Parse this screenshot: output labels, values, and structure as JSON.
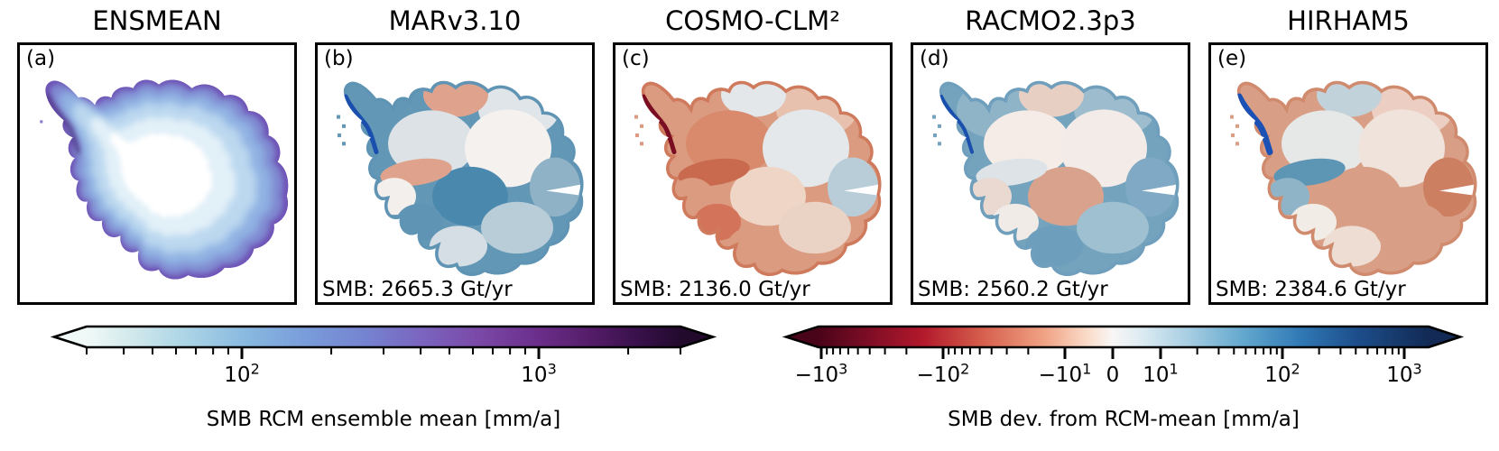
{
  "panels": [
    {
      "id": "(a)",
      "title": "ENSMEAN",
      "smb": ""
    },
    {
      "id": "(b)",
      "title": "MARv3.10",
      "smb": "SMB: 2665.3 Gt/yr"
    },
    {
      "id": "(c)",
      "title": "COSMO-CLM²",
      "smb": "SMB: 2136.0 Gt/yr"
    },
    {
      "id": "(d)",
      "title": "RACMO2.3p3",
      "smb": "SMB: 2560.2 Gt/yr"
    },
    {
      "id": "(e)",
      "title": "HIRHAM5",
      "smb": "SMB: 2384.6 Gt/yr"
    }
  ],
  "colorbars": {
    "left": {
      "label": "SMB RCM ensemble mean [mm/a]",
      "scale": "log",
      "majors": [
        {
          "v": 100,
          "base": "10",
          "exp": "2"
        },
        {
          "v": 1000,
          "base": "10",
          "exp": "3"
        }
      ],
      "minors": [
        30,
        40,
        50,
        60,
        70,
        80,
        90,
        200,
        300,
        400,
        500,
        600,
        700,
        800,
        900,
        2000,
        3000
      ],
      "gradient": [
        [
          0,
          "#f0f9f7"
        ],
        [
          0.07,
          "#d4eaec"
        ],
        [
          0.16,
          "#aed6e6"
        ],
        [
          0.27,
          "#88b9e0"
        ],
        [
          0.37,
          "#799cda"
        ],
        [
          0.47,
          "#7583d0"
        ],
        [
          0.56,
          "#7a66c0"
        ],
        [
          0.66,
          "#7b49a7"
        ],
        [
          0.76,
          "#6b2e8b"
        ],
        [
          0.85,
          "#541c68"
        ],
        [
          0.93,
          "#38104a"
        ],
        [
          1,
          "#220a2d"
        ]
      ]
    },
    "right": {
      "label": "SMB dev. from RCM-mean [mm/a]",
      "scale": "symlog",
      "majors": [
        {
          "v": -1000,
          "base": "−10",
          "exp": "3"
        },
        {
          "v": -100,
          "base": "−10",
          "exp": "2"
        },
        {
          "v": -10,
          "base": "−10",
          "exp": "1"
        },
        {
          "v": 0,
          "base": "0",
          "exp": ""
        },
        {
          "v": 10,
          "base": "10",
          "exp": "1"
        },
        {
          "v": 100,
          "base": "10",
          "exp": "2"
        },
        {
          "v": 1000,
          "base": "10",
          "exp": "3"
        }
      ],
      "minors": [
        -900,
        -800,
        -700,
        -600,
        -500,
        -400,
        -300,
        -200,
        -90,
        -80,
        -70,
        -60,
        -50,
        -40,
        -30,
        -20,
        20,
        30,
        40,
        50,
        60,
        70,
        80,
        90,
        200,
        300,
        400,
        500,
        600,
        700,
        800,
        900
      ],
      "gradient": [
        [
          0,
          "#4a0419"
        ],
        [
          0.08,
          "#7c0d25"
        ],
        [
          0.17,
          "#b2182b"
        ],
        [
          0.27,
          "#d6604d"
        ],
        [
          0.37,
          "#f0a284"
        ],
        [
          0.44,
          "#fadbc8"
        ],
        [
          0.482,
          "#f8f6f5"
        ],
        [
          0.53,
          "#dcebf2"
        ],
        [
          0.6,
          "#abd0e4"
        ],
        [
          0.7,
          "#60a6cd"
        ],
        [
          0.79,
          "#3079b5"
        ],
        [
          0.88,
          "#1d4f8c"
        ],
        [
          1,
          "#122a55"
        ]
      ]
    }
  },
  "map_colors": {
    "a": {
      "spine": "#46257c",
      "layers": [
        {
          "s": 1.0,
          "c": "#6f53b6",
          "b": 0
        },
        {
          "s": 0.96,
          "c": "#7e86cf",
          "b": 3
        },
        {
          "s": 0.88,
          "c": "#8fb1e2",
          "b": 5
        },
        {
          "s": 0.76,
          "c": "#bcd8ef",
          "b": 6
        },
        {
          "s": 0.6,
          "c": "#e2f0f8",
          "b": 6
        },
        {
          "s": 0.42,
          "c": "#ffffff",
          "b": 6
        }
      ]
    },
    "b": {
      "coast": "#5f94b4",
      "base": "#6397b6",
      "spine": "#1a4fae",
      "spine_w": 5,
      "islands": "#6397b6",
      "basins": {
        "tl": "#6397b6",
        "tm": "#dfa38d",
        "tr": "#e0e5e9",
        "cl": "#dde2e6",
        "cr": "#f4f1ef",
        "strip": "#dfa38d",
        "ww": "#f2efec",
        "cb": "#4a88ad",
        "bl": "#5f94b4",
        "bm": "#d5dee4",
        "br": "#b9cdd9",
        "rt": "#8fb2c6"
      }
    },
    "c": {
      "coast": "#cf7a5c",
      "base": "#db9b80",
      "spine": "#7a0d22",
      "spine_w": 5,
      "islands": "#db9b80",
      "basins": {
        "tl": "#db9b80",
        "tm": "#e3e7ea",
        "tr": "#e7c0ae",
        "cl": "#d98a6c",
        "cr": "#e4e8ea",
        "strip": "#c96a4e",
        "ww": "#db9b80",
        "cb": "#eed5c6",
        "bl": "#d3745a",
        "bm": "#db9b80",
        "br": "#ead2c4",
        "rt": "#b9cdd9"
      }
    },
    "d": {
      "coast": "#6f9fbc",
      "base": "#74a3be",
      "spine": "#1a4fae",
      "spine_w": 4,
      "islands": "#74a3be",
      "basins": {
        "tl": "#8fb4c8",
        "tm": "#e8cfc4",
        "tr": "#9dbccd",
        "cl": "#f5ece8",
        "cr": "#f3ebe7",
        "strip": "#dde3e7",
        "ww": "#ead9d0",
        "cb": "#d8a28c",
        "bl": "#f0ebe7",
        "bm": "#6d9fbc",
        "br": "#9fc0d1",
        "rt": "#7fa9c4"
      }
    },
    "e": {
      "coast": "#d08a6e",
      "base": "#d99f86",
      "spine": "#1b50b5",
      "spine_w": 7,
      "islands": "#d99f86",
      "basins": {
        "tl": "#d99f86",
        "tm": "#c2d2da",
        "tr": "#eccfc2",
        "cl": "#e6e8e8",
        "cr": "#f0e3dc",
        "strip": "#5d95b5",
        "ww": "#8fb4c8",
        "cb": "#d99f86",
        "bl": "#f1ece6",
        "bm": "#edddd3",
        "br": "#d99f86",
        "rt": "#cc7f61"
      }
    }
  },
  "chart_data": {
    "type": "heatmap",
    "title": "",
    "panels": [
      {
        "label": "(a)",
        "model": "ENSMEAN",
        "quantity": "SMB RCM ensemble mean [mm/a]"
      },
      {
        "label": "(b)",
        "model": "MARv3.10",
        "smb_total_gt_yr": 2665.3,
        "quantity": "SMB dev. from RCM-mean [mm/a]"
      },
      {
        "label": "(c)",
        "model": "COSMO-CLM²",
        "smb_total_gt_yr": 2136.0,
        "quantity": "SMB dev. from RCM-mean [mm/a]"
      },
      {
        "label": "(d)",
        "model": "RACMO2.3p3",
        "smb_total_gt_yr": 2560.2,
        "quantity": "SMB dev. from RCM-mean [mm/a]"
      },
      {
        "label": "(e)",
        "model": "HIRHAM5",
        "smb_total_gt_yr": 2384.6,
        "quantity": "SMB dev. from RCM-mean [mm/a]"
      }
    ],
    "colorbars": [
      {
        "label": "SMB RCM ensemble mean [mm/a]",
        "scale": "log",
        "tick_labels": [
          "10²",
          "10³"
        ],
        "range": [
          30,
          3000
        ],
        "extend": "both",
        "colormap": "light-cyan → blue → purple → dark purple"
      },
      {
        "label": "SMB dev. from RCM-mean [mm/a]",
        "scale": "symlog",
        "tick_labels": [
          "−10³",
          "−10²",
          "−10¹",
          "0",
          "10¹",
          "10²",
          "10³"
        ],
        "range": [
          -1000,
          1000
        ],
        "extend": "both",
        "colormap": "RdBu (dark red → white → dark navy)"
      }
    ]
  }
}
